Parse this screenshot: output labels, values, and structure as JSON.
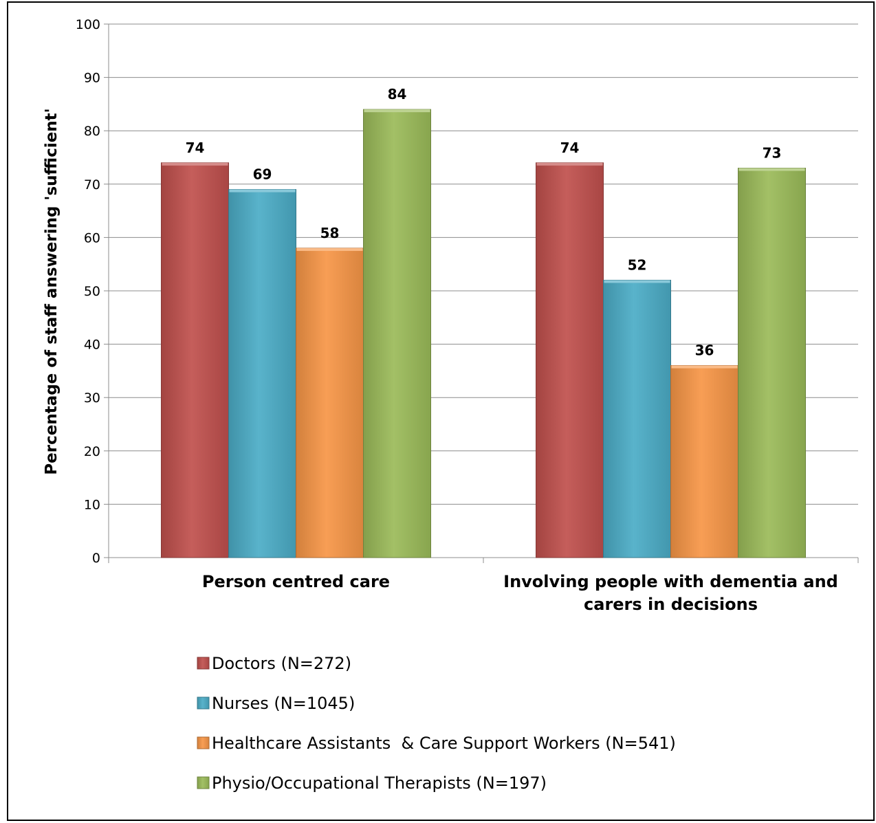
{
  "chart_data": {
    "type": "bar",
    "title": "",
    "xlabel": "",
    "ylabel": "Percentage of staff answering 'sufficient'",
    "categories": [
      [
        "Person centred care"
      ],
      [
        "Involving people with dementia and",
        "carers in decisions"
      ]
    ],
    "series": [
      {
        "name": "Doctors (N=272)",
        "values": [
          74,
          74
        ],
        "color": "#c0504d"
      },
      {
        "name": "Nurses (N=1045)",
        "values": [
          69,
          52
        ],
        "color": "#4bacc6"
      },
      {
        "name": "Healthcare Assistants  & Care Support Workers (N=541)",
        "values": [
          58,
          36
        ],
        "color": "#f79646"
      },
      {
        "name": "Physio/Occupational Therapists (N=197)",
        "values": [
          84,
          73
        ],
        "color": "#9bbb59"
      }
    ],
    "ylim": [
      0,
      100
    ],
    "yticks": [
      "0",
      "10",
      "20",
      "30",
      "40",
      "50",
      "60",
      "70",
      "80",
      "90",
      "100"
    ],
    "grid": true,
    "data_labels": true,
    "legend_position": "bottom"
  }
}
